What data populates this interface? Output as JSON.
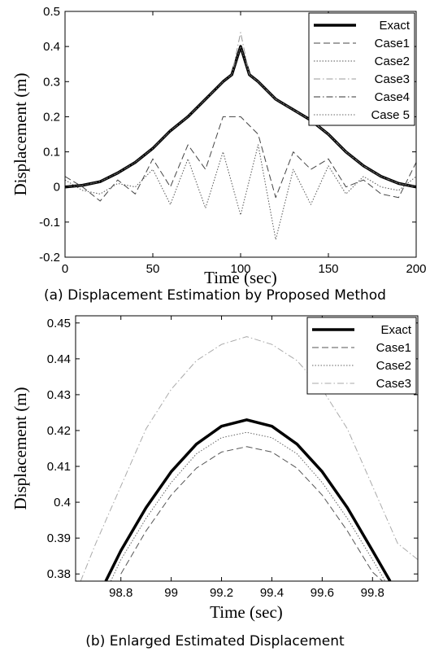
{
  "figure_a": {
    "caption": "(a) Displacement Estimation by Proposed Method",
    "chart_data": {
      "type": "line",
      "xlabel": "Time (sec)",
      "ylabel": "Displacement (m)",
      "xlim": [
        0,
        200
      ],
      "ylim": [
        -0.2,
        0.5
      ],
      "x_ticks": [
        "0",
        "50",
        "100",
        "150",
        "200"
      ],
      "y_ticks": [
        "-0.2",
        "-0.1",
        "0",
        "0.1",
        "0.2",
        "0.3",
        "0.4",
        "0.5"
      ],
      "grid": false,
      "legend_position": "top-right",
      "series": [
        {
          "name": "Exact",
          "x": [
            0,
            10,
            20,
            30,
            40,
            50,
            60,
            70,
            80,
            90,
            95,
            100,
            105,
            110,
            120,
            130,
            140,
            150,
            160,
            170,
            180,
            190,
            200
          ],
          "values": [
            0.0,
            0.005,
            0.015,
            0.04,
            0.07,
            0.11,
            0.16,
            0.2,
            0.25,
            0.3,
            0.32,
            0.4,
            0.32,
            0.3,
            0.25,
            0.22,
            0.19,
            0.15,
            0.1,
            0.06,
            0.03,
            0.01,
            0.0
          ]
        },
        {
          "name": "Case1",
          "x": [
            0,
            10,
            20,
            30,
            40,
            50,
            60,
            70,
            80,
            90,
            100,
            110,
            120,
            130,
            140,
            150,
            160,
            170,
            180,
            190,
            200
          ],
          "values": [
            0.03,
            0.0,
            -0.04,
            0.02,
            -0.02,
            0.08,
            0.0,
            0.12,
            0.05,
            0.2,
            0.2,
            0.15,
            -0.03,
            0.1,
            0.05,
            0.08,
            0.0,
            0.02,
            -0.02,
            -0.03,
            0.07
          ]
        },
        {
          "name": "Case2",
          "x": [
            0,
            10,
            20,
            30,
            40,
            50,
            60,
            70,
            80,
            90,
            100,
            110,
            120,
            130,
            140,
            150,
            160,
            170,
            180,
            190,
            200
          ],
          "values": [
            0.02,
            -0.01,
            -0.02,
            0.01,
            0.0,
            0.05,
            -0.05,
            0.08,
            -0.06,
            0.1,
            -0.08,
            0.12,
            -0.15,
            0.05,
            -0.05,
            0.06,
            -0.02,
            0.03,
            0.0,
            -0.01,
            0.03
          ]
        },
        {
          "name": "Case3",
          "x": [
            0,
            10,
            20,
            30,
            40,
            50,
            60,
            70,
            80,
            90,
            95,
            100,
            105,
            110,
            120,
            130,
            140,
            150,
            160,
            170,
            180,
            190,
            200
          ],
          "values": [
            0.0,
            0.005,
            0.015,
            0.04,
            0.07,
            0.11,
            0.16,
            0.2,
            0.25,
            0.3,
            0.32,
            0.44,
            0.32,
            0.3,
            0.25,
            0.22,
            0.19,
            0.15,
            0.1,
            0.06,
            0.03,
            0.01,
            0.0
          ]
        },
        {
          "name": "Case4",
          "x": [
            0,
            10,
            20,
            30,
            40,
            50,
            60,
            70,
            80,
            90,
            95,
            100,
            105,
            110,
            120,
            130,
            140,
            150,
            160,
            170,
            180,
            190,
            200
          ],
          "values": [
            0.0,
            0.005,
            0.015,
            0.04,
            0.07,
            0.11,
            0.16,
            0.2,
            0.25,
            0.3,
            0.32,
            0.4,
            0.32,
            0.3,
            0.25,
            0.22,
            0.19,
            0.15,
            0.1,
            0.06,
            0.03,
            0.01,
            0.0
          ]
        },
        {
          "name": "Case 5",
          "x": [
            0,
            10,
            20,
            30,
            40,
            50,
            60,
            70,
            80,
            90,
            95,
            100,
            105,
            110,
            120,
            130,
            140,
            150,
            160,
            170,
            180,
            190,
            200
          ],
          "values": [
            0.0,
            0.005,
            0.015,
            0.04,
            0.07,
            0.11,
            0.16,
            0.2,
            0.25,
            0.3,
            0.32,
            0.4,
            0.32,
            0.3,
            0.25,
            0.22,
            0.19,
            0.15,
            0.1,
            0.06,
            0.03,
            0.01,
            0.0
          ]
        }
      ],
      "colors": {
        "Exact": "#000000",
        "Case1": "#444444",
        "Case2": "#555555",
        "Case3": "#999999",
        "Case4": "#333333",
        "Case 5": "#666666"
      }
    }
  },
  "figure_b": {
    "caption": "(b) Enlarged Estimated Displacement",
    "chart_data": {
      "type": "line",
      "xlabel": "Time (sec)",
      "ylabel": "Displacement (m)",
      "xlim": [
        98.62,
        99.98
      ],
      "ylim": [
        0.378,
        0.452
      ],
      "x_ticks": [
        "98.8",
        "99",
        "99.2",
        "99.4",
        "99.6",
        "99.8"
      ],
      "y_ticks": [
        "0.38",
        "0.39",
        "0.4",
        "0.41",
        "0.42",
        "0.43",
        "0.44",
        "0.45"
      ],
      "grid": false,
      "legend_position": "top-right",
      "series": [
        {
          "name": "Exact",
          "x": [
            98.74,
            98.8,
            98.9,
            99.0,
            99.1,
            99.2,
            99.3,
            99.4,
            99.5,
            99.6,
            99.7,
            99.8,
            99.87
          ],
          "values": [
            0.378,
            0.3865,
            0.3985,
            0.4085,
            0.4162,
            0.4212,
            0.423,
            0.4212,
            0.4162,
            0.4085,
            0.3985,
            0.3865,
            0.378
          ]
        },
        {
          "name": "Case1",
          "x": [
            98.8,
            98.9,
            99.0,
            99.1,
            99.2,
            99.3,
            99.4,
            99.5,
            99.6,
            99.7,
            99.8,
            99.84
          ],
          "values": [
            0.38,
            0.392,
            0.402,
            0.4095,
            0.414,
            0.4155,
            0.414,
            0.4095,
            0.402,
            0.392,
            0.3805,
            0.378
          ]
        },
        {
          "name": "Case2",
          "x": [
            98.76,
            98.8,
            98.9,
            99.0,
            99.1,
            99.2,
            99.3,
            99.4,
            99.5,
            99.6,
            99.7,
            99.8,
            99.85
          ],
          "values": [
            0.378,
            0.384,
            0.3955,
            0.4055,
            0.4135,
            0.418,
            0.4195,
            0.418,
            0.4135,
            0.4055,
            0.3955,
            0.384,
            0.378
          ]
        },
        {
          "name": "Case3",
          "x": [
            98.64,
            98.7,
            98.8,
            98.9,
            99.0,
            99.1,
            99.2,
            99.3,
            99.4,
            99.5,
            99.6,
            99.7,
            99.8,
            99.9,
            99.98
          ],
          "values": [
            0.378,
            0.3885,
            0.4045,
            0.4205,
            0.4315,
            0.4395,
            0.444,
            0.4462,
            0.444,
            0.4395,
            0.4315,
            0.4205,
            0.4045,
            0.3885,
            0.384
          ]
        }
      ],
      "colors": {
        "Exact": "#000000",
        "Case1": "#555555",
        "Case2": "#666666",
        "Case3": "#aaaaaa"
      }
    }
  }
}
